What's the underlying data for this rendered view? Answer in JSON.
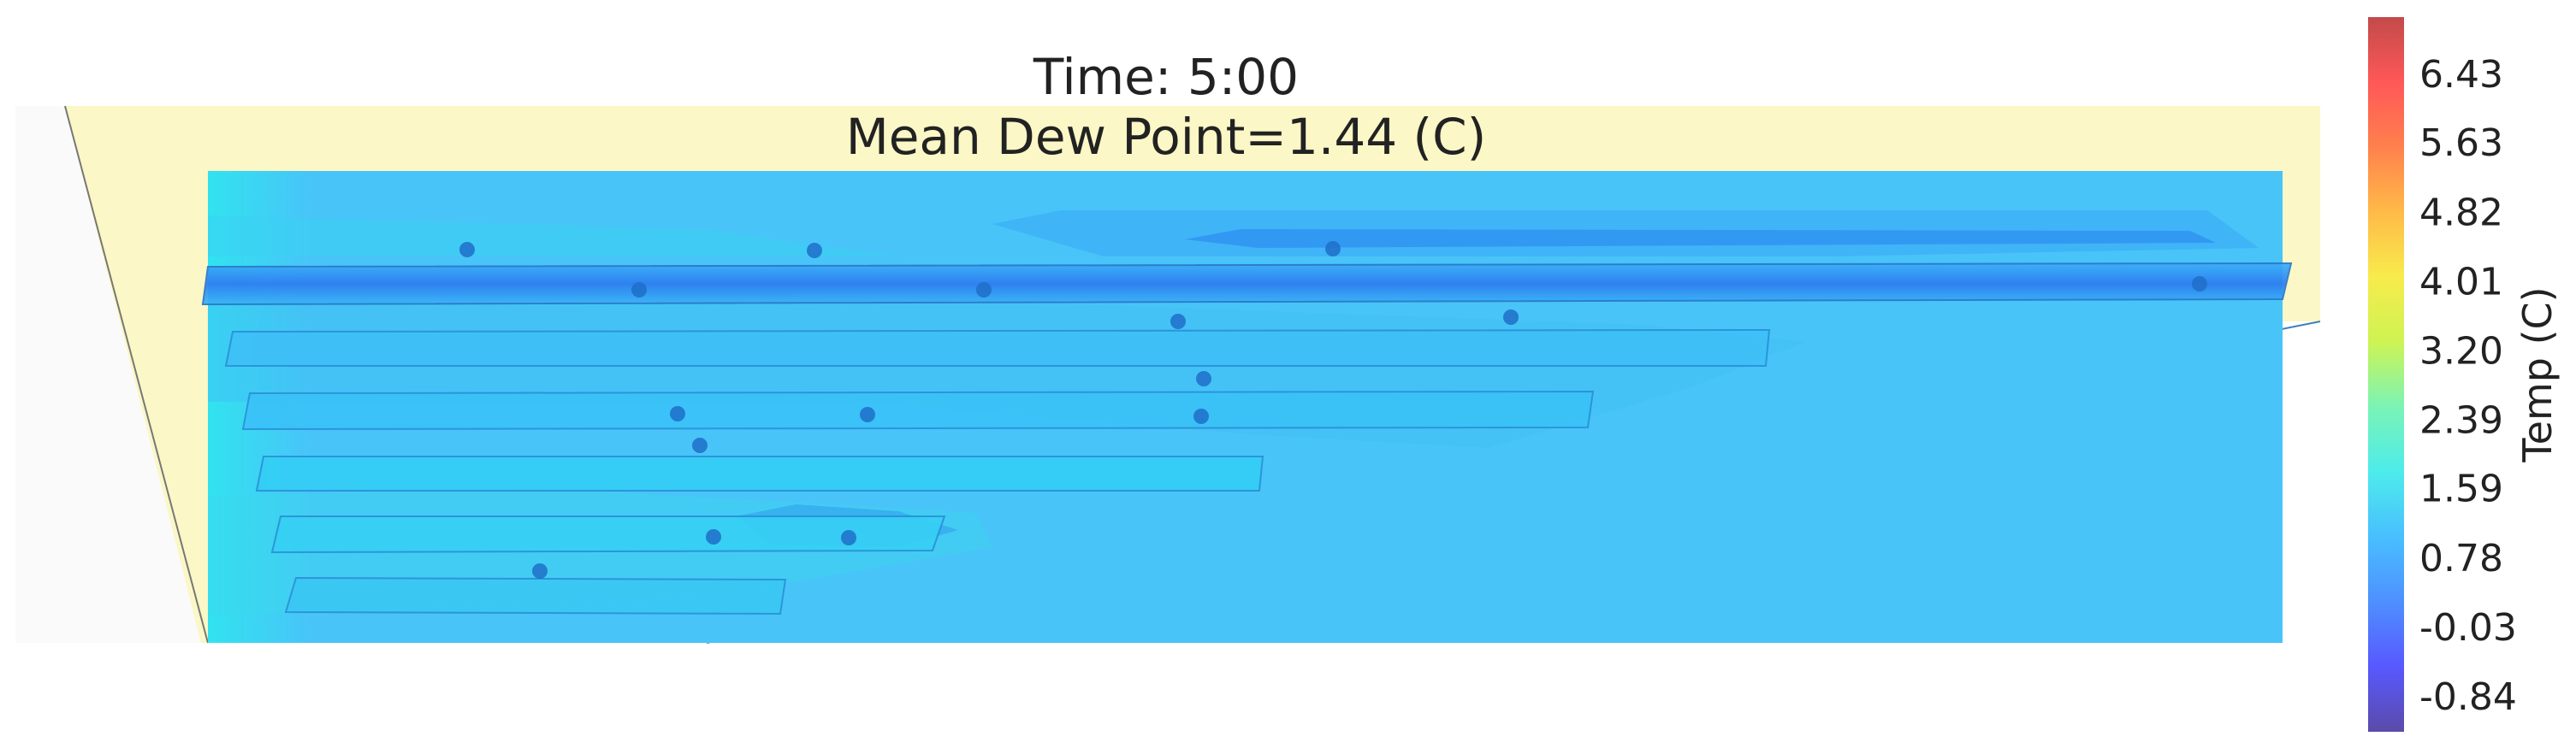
{
  "chart_data": {
    "type": "heatmap",
    "title": "Time: 5:00",
    "subtitle": "Mean Dew Point=1.44 (C)",
    "colorbar": {
      "label": "Temp (C)",
      "min": -1.25,
      "max": 7.1,
      "ticks": [
        6.43,
        5.63,
        4.82,
        4.01,
        3.2,
        2.39,
        1.59,
        0.78,
        -0.03,
        -0.84
      ],
      "tick_labels": [
        "6.43",
        "5.63",
        "4.82",
        "4.01",
        "3.20",
        "2.39",
        "1.59",
        "0.78",
        "-0.03",
        "-0.84"
      ],
      "colormap": [
        "#3e2b9a",
        "#3a3bff",
        "#2f7cff",
        "#28b4ff",
        "#2ee8e8",
        "#63f2a8",
        "#c4f235",
        "#f6e82c",
        "#ffae28",
        "#ff6a2e",
        "#ff3a3a",
        "#b82a2a"
      ]
    },
    "field_color": "#48c4f8",
    "building_outline_color": "#fbf7c6",
    "sensor_color": "#1f6fc8",
    "sensor_count": 18
  }
}
